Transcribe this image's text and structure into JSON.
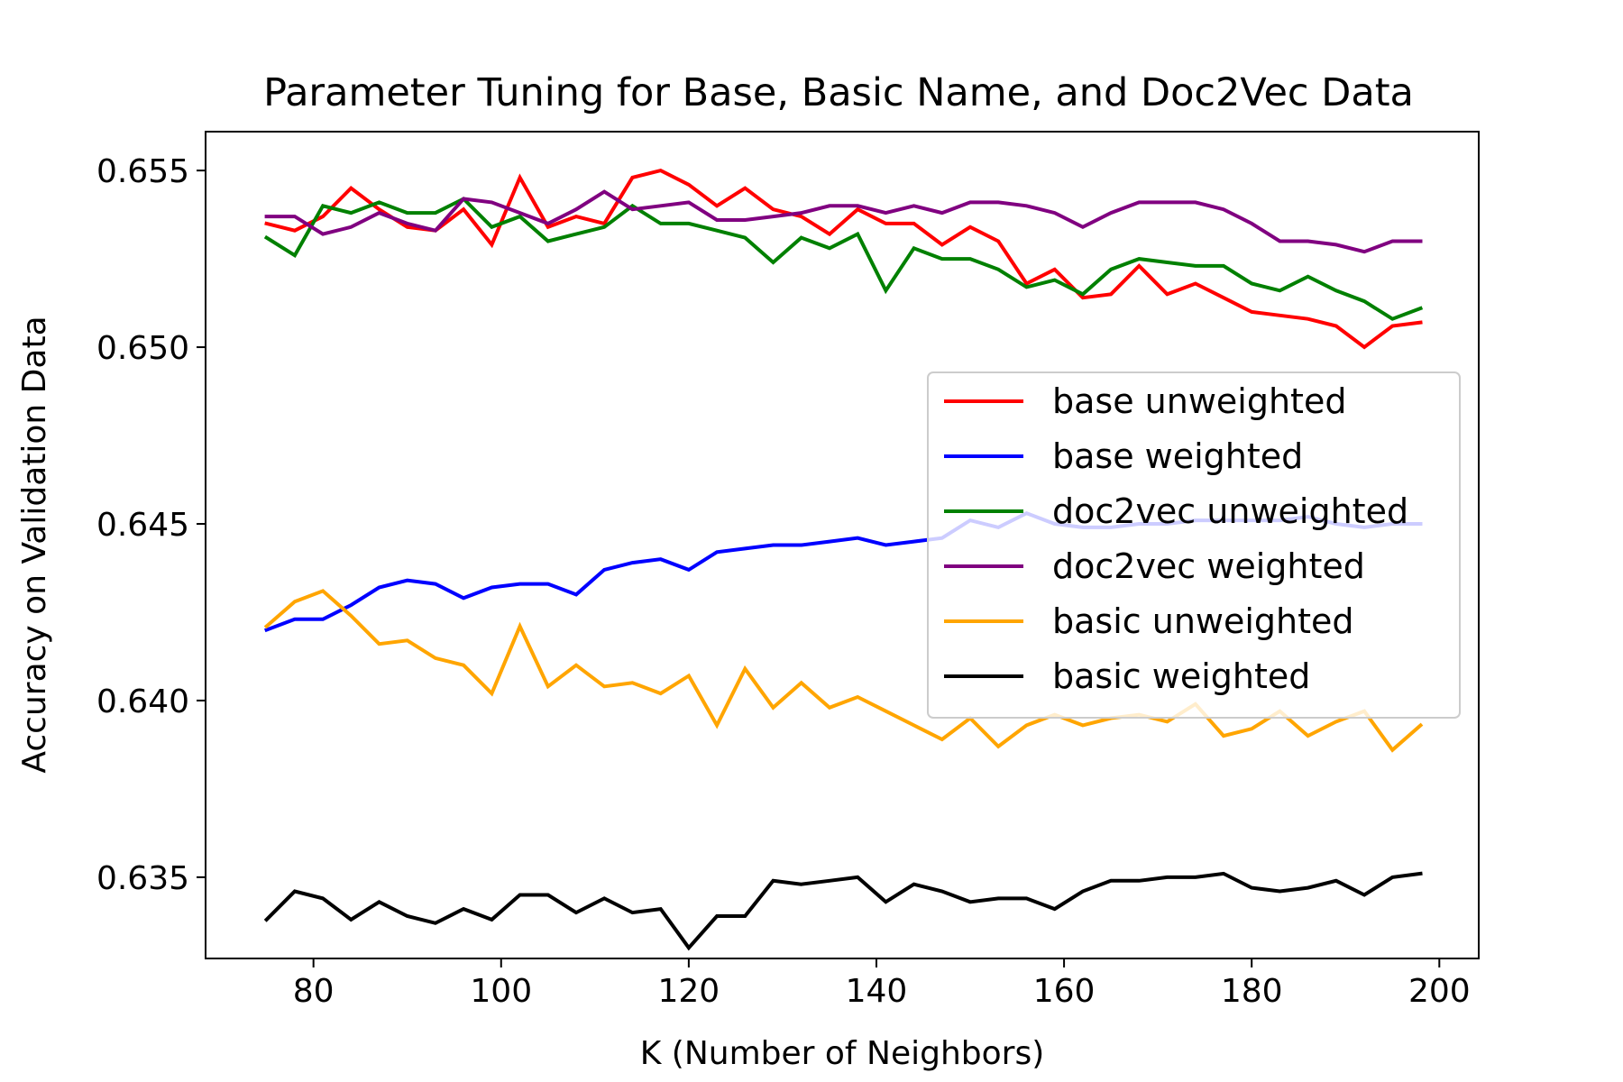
{
  "chart_data": {
    "type": "line",
    "title": "Parameter Tuning for Base, Basic Name, and Doc2Vec Data",
    "xlabel": "K (Number of Neighbors)",
    "ylabel": "Accuracy on Validation Data",
    "xlim": [
      68.5,
      204.2
    ],
    "ylim": [
      0.6327,
      0.6561
    ],
    "xticks": [
      80,
      100,
      120,
      140,
      160,
      180,
      200
    ],
    "xtick_labels": [
      "80",
      "100",
      "120",
      "140",
      "160",
      "180",
      "200"
    ],
    "yticks": [
      0.635,
      0.64,
      0.645,
      0.65,
      0.655
    ],
    "ytick_labels": [
      "0.635",
      "0.640",
      "0.645",
      "0.650",
      "0.655"
    ],
    "grid": false,
    "legend_position": "center-right",
    "x": [
      75,
      78,
      81,
      84,
      87,
      90,
      93,
      96,
      99,
      102,
      105,
      108,
      111,
      114,
      117,
      120,
      123,
      126,
      129,
      132,
      135,
      138,
      141,
      144,
      147,
      150,
      153,
      156,
      159,
      162,
      165,
      168,
      171,
      174,
      177,
      180,
      183,
      186,
      189,
      192,
      195,
      198
    ],
    "series": [
      {
        "name": "base unweighted",
        "color": "#ff0000",
        "values": [
          0.6535,
          0.6533,
          0.6537,
          0.6545,
          0.6539,
          0.6534,
          0.6533,
          0.6539,
          0.6529,
          0.6548,
          0.6534,
          0.6537,
          0.6535,
          0.6548,
          0.655,
          0.6546,
          0.654,
          0.6545,
          0.6539,
          0.6537,
          0.6532,
          0.6539,
          0.6535,
          0.6535,
          0.6529,
          0.6534,
          0.653,
          0.6518,
          0.6522,
          0.6514,
          0.6515,
          0.6523,
          0.6515,
          0.6518,
          0.6514,
          0.651,
          0.6509,
          0.6508,
          0.6506,
          0.65,
          0.6506,
          0.6507
        ]
      },
      {
        "name": "base weighted",
        "color": "#0000ff",
        "values": [
          0.642,
          0.6423,
          0.6423,
          0.6427,
          0.6432,
          0.6434,
          0.6433,
          0.6429,
          0.6432,
          0.6433,
          0.6433,
          0.643,
          0.6437,
          0.6439,
          0.644,
          0.6437,
          0.6442,
          0.6443,
          0.6444,
          0.6444,
          0.6445,
          0.6446,
          0.6444,
          0.6445,
          0.6446,
          0.6451,
          0.6449,
          0.6453,
          0.645,
          0.6449,
          0.6449,
          0.645,
          0.645,
          0.6451,
          0.6451,
          0.6451,
          0.6451,
          0.6452,
          0.645,
          0.6449,
          0.645,
          0.645
        ]
      },
      {
        "name": "doc2vec unweighted",
        "color": "#008000",
        "values": [
          0.6531,
          0.6526,
          0.654,
          0.6538,
          0.6541,
          0.6538,
          0.6538,
          0.6542,
          0.6534,
          0.6537,
          0.653,
          0.6532,
          0.6534,
          0.654,
          0.6535,
          0.6535,
          0.6533,
          0.6531,
          0.6524,
          0.6531,
          0.6528,
          0.6532,
          0.6516,
          0.6528,
          0.6525,
          0.6525,
          0.6522,
          0.6517,
          0.6519,
          0.6515,
          0.6522,
          0.6525,
          0.6524,
          0.6523,
          0.6523,
          0.6518,
          0.6516,
          0.652,
          0.6516,
          0.6513,
          0.6508,
          0.6511
        ]
      },
      {
        "name": "doc2vec weighted",
        "color": "#800080",
        "values": [
          0.6537,
          0.6537,
          0.6532,
          0.6534,
          0.6538,
          0.6535,
          0.6533,
          0.6542,
          0.6541,
          0.6538,
          0.6535,
          0.6539,
          0.6544,
          0.6539,
          0.654,
          0.6541,
          0.6536,
          0.6536,
          0.6537,
          0.6538,
          0.654,
          0.654,
          0.6538,
          0.654,
          0.6538,
          0.6541,
          0.6541,
          0.654,
          0.6538,
          0.6534,
          0.6538,
          0.6541,
          0.6541,
          0.6541,
          0.6539,
          0.6535,
          0.653,
          0.653,
          0.6529,
          0.6527,
          0.653,
          0.653
        ]
      },
      {
        "name": "basic unweighted",
        "color": "#ffa500",
        "values": [
          0.6421,
          0.6428,
          0.6431,
          0.6424,
          0.6416,
          0.6417,
          0.6412,
          0.641,
          0.6402,
          0.6421,
          0.6404,
          0.641,
          0.6404,
          0.6405,
          0.6402,
          0.6407,
          0.6393,
          0.6409,
          0.6398,
          0.6405,
          0.6398,
          0.6401,
          0.6397,
          0.6393,
          0.6389,
          0.6395,
          0.6387,
          0.6393,
          0.6396,
          0.6393,
          0.6395,
          0.6396,
          0.6394,
          0.6399,
          0.639,
          0.6392,
          0.6397,
          0.639,
          0.6394,
          0.6397,
          0.6386,
          0.6393
        ]
      },
      {
        "name": "basic weighted",
        "color": "#000000",
        "values": [
          0.6338,
          0.6346,
          0.6344,
          0.6338,
          0.6343,
          0.6339,
          0.6337,
          0.6341,
          0.6338,
          0.6345,
          0.6345,
          0.634,
          0.6344,
          0.634,
          0.6341,
          0.633,
          0.6339,
          0.6339,
          0.6349,
          0.6348,
          0.6349,
          0.635,
          0.6343,
          0.6348,
          0.6346,
          0.6343,
          0.6344,
          0.6344,
          0.6341,
          0.6346,
          0.6349,
          0.6349,
          0.635,
          0.635,
          0.6351,
          0.6347,
          0.6346,
          0.6347,
          0.6349,
          0.6345,
          0.635,
          0.6351
        ]
      }
    ]
  }
}
